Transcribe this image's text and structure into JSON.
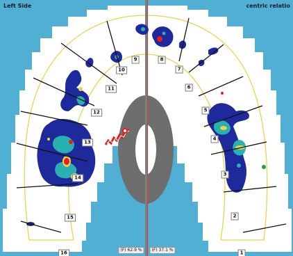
{
  "header": {
    "left_title": "Left Side",
    "right_title": "centric relatio"
  },
  "tooth_numbers": [
    "1",
    "2",
    "3",
    "4",
    "5",
    "6",
    "7",
    "8",
    "9",
    "10",
    "11",
    "12",
    "13",
    "14",
    "15",
    "16"
  ],
  "force_readouts": {
    "left": "(F) 62.9 %",
    "right": "(F) 37.1 %"
  },
  "colors": {
    "background_blue": "#50afd3",
    "arch_outline": "#e8d44a",
    "ring": "#6e6e6e",
    "center_divider_left": "#7f7f7f",
    "center_divider_right": "#d23c3c",
    "contact_low": "#1e2a9b",
    "contact_mid": "#29b0b0",
    "contact_high": "#e81c1c"
  },
  "icons": {
    "trajectory_marker": "red-white-zigzag-icon"
  }
}
